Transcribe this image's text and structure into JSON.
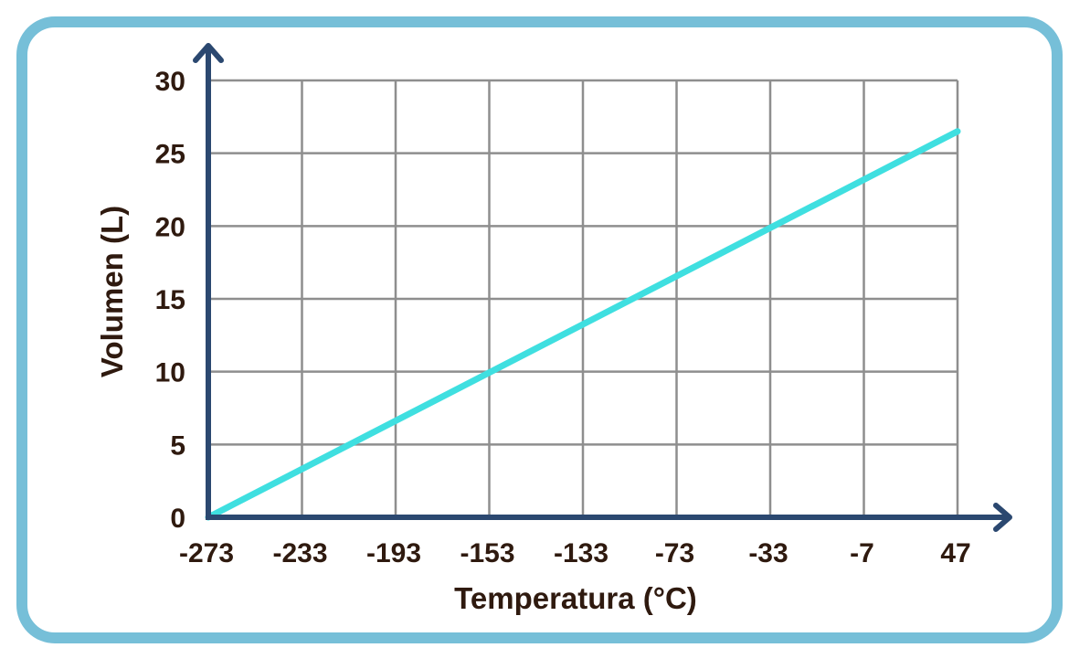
{
  "colors": {
    "frame": "#76bfd8",
    "grid": "#8e8e8e",
    "axis": "#2b4870",
    "line": "#3fdfe0",
    "text": "#2f1a0f"
  },
  "chart_data": {
    "type": "line",
    "title": "",
    "xlabel": "Temperatura (°C)",
    "ylabel": "Volumen  (L)",
    "x_ticks": [
      "-273",
      "-233",
      "-193",
      "-153",
      "-133",
      "-73",
      "-33",
      "-7",
      "47"
    ],
    "y_ticks": [
      "0",
      "5",
      "10",
      "15",
      "20",
      "25",
      "30"
    ],
    "ylim": [
      0,
      30
    ],
    "grid": true,
    "series": [
      {
        "name": "Volumen",
        "x": [
          -273,
          47
        ],
        "y": [
          0,
          26.5
        ]
      }
    ]
  }
}
